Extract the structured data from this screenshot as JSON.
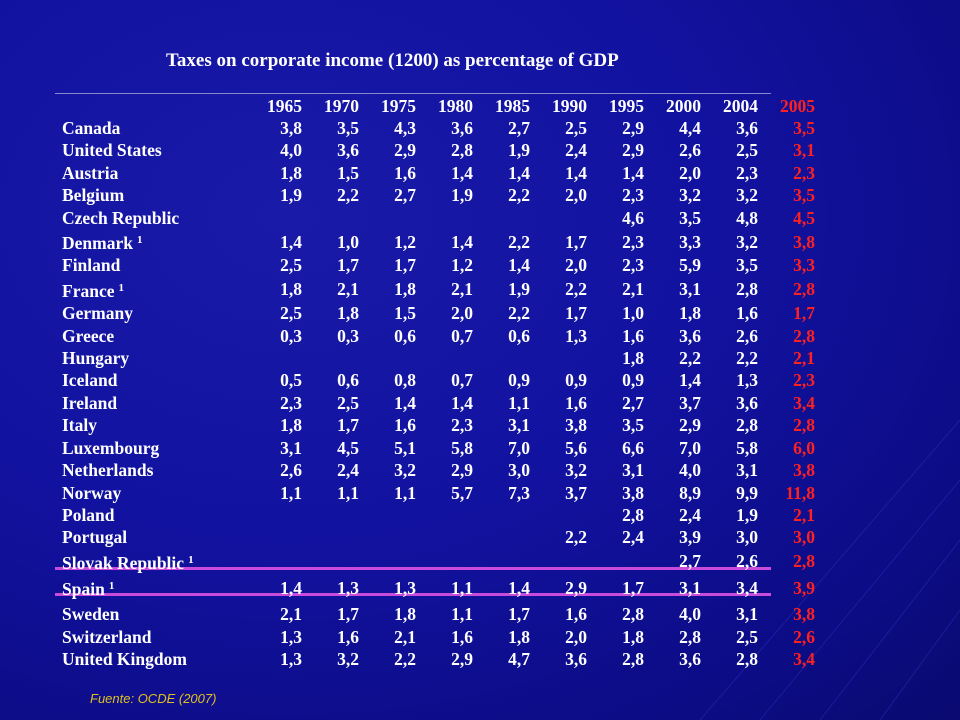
{
  "title": "Taxes on corporate income (1200) as percentage of GDP",
  "years": [
    "1965",
    "1970",
    "1975",
    "1980",
    "1985",
    "1990",
    "1995",
    "2000",
    "2004",
    "2005"
  ],
  "rows": [
    {
      "country": "Canada",
      "note": "",
      "values": [
        "3,8",
        "3,5",
        "4,3",
        "3,6",
        "2,7",
        "2,5",
        "2,9",
        "4,4",
        "3,6",
        "3,5"
      ]
    },
    {
      "country": "United States",
      "note": "",
      "values": [
        "4,0",
        "3,6",
        "2,9",
        "2,8",
        "1,9",
        "2,4",
        "2,9",
        "2,6",
        "2,5",
        "3,1"
      ]
    },
    {
      "country": "Austria",
      "note": "",
      "values": [
        "1,8",
        "1,5",
        "1,6",
        "1,4",
        "1,4",
        "1,4",
        "1,4",
        "2,0",
        "2,3",
        "2,3"
      ]
    },
    {
      "country": "Belgium",
      "note": "",
      "values": [
        "1,9",
        "2,2",
        "2,7",
        "1,9",
        "2,2",
        "2,0",
        "2,3",
        "3,2",
        "3,2",
        "3,5"
      ]
    },
    {
      "country": "Czech Republic",
      "note": "",
      "values": [
        "",
        "",
        "",
        "",
        "",
        "",
        "4,6",
        "3,5",
        "4,8",
        "4,5"
      ]
    },
    {
      "country": "Denmark",
      "note": "1",
      "values": [
        "1,4",
        "1,0",
        "1,2",
        "1,4",
        "2,2",
        "1,7",
        "2,3",
        "3,3",
        "3,2",
        "3,8"
      ]
    },
    {
      "country": "Finland",
      "note": "",
      "values": [
        "2,5",
        "1,7",
        "1,7",
        "1,2",
        "1,4",
        "2,0",
        "2,3",
        "5,9",
        "3,5",
        "3,3"
      ]
    },
    {
      "country": "France",
      "note": "1",
      "values": [
        "1,8",
        "2,1",
        "1,8",
        "2,1",
        "1,9",
        "2,2",
        "2,1",
        "3,1",
        "2,8",
        "2,8"
      ]
    },
    {
      "country": "Germany",
      "note": "",
      "values": [
        "2,5",
        "1,8",
        "1,5",
        "2,0",
        "2,2",
        "1,7",
        "1,0",
        "1,8",
        "1,6",
        "1,7"
      ]
    },
    {
      "country": "Greece",
      "note": "",
      "values": [
        "0,3",
        "0,3",
        "0,6",
        "0,7",
        "0,6",
        "1,3",
        "1,6",
        "3,6",
        "2,6",
        "2,8"
      ]
    },
    {
      "country": "Hungary",
      "note": "",
      "values": [
        "",
        "",
        "",
        "",
        "",
        "",
        "1,8",
        "2,2",
        "2,2",
        "2,1"
      ]
    },
    {
      "country": "Iceland",
      "note": "",
      "values": [
        "0,5",
        "0,6",
        "0,8",
        "0,7",
        "0,9",
        "0,9",
        "0,9",
        "1,4",
        "1,3",
        "2,3"
      ]
    },
    {
      "country": "Ireland",
      "note": "",
      "values": [
        "2,3",
        "2,5",
        "1,4",
        "1,4",
        "1,1",
        "1,6",
        "2,7",
        "3,7",
        "3,6",
        "3,4"
      ]
    },
    {
      "country": "Italy",
      "note": "",
      "values": [
        "1,8",
        "1,7",
        "1,6",
        "2,3",
        "3,1",
        "3,8",
        "3,5",
        "2,9",
        "2,8",
        "2,8"
      ]
    },
    {
      "country": "Luxembourg",
      "note": "",
      "values": [
        "3,1",
        "4,5",
        "5,1",
        "5,8",
        "7,0",
        "5,6",
        "6,6",
        "7,0",
        "5,8",
        "6,0"
      ]
    },
    {
      "country": "Netherlands",
      "note": "",
      "values": [
        "2,6",
        "2,4",
        "3,2",
        "2,9",
        "3,0",
        "3,2",
        "3,1",
        "4,0",
        "3,1",
        "3,8"
      ]
    },
    {
      "country": "Norway",
      "note": "",
      "values": [
        "1,1",
        "1,1",
        "1,1",
        "5,7",
        "7,3",
        "3,7",
        "3,8",
        "8,9",
        "9,9",
        "11,8"
      ]
    },
    {
      "country": "Poland",
      "note": "",
      "values": [
        "",
        "",
        "",
        "",
        "",
        "",
        "2,8",
        "2,4",
        "1,9",
        "2,1"
      ]
    },
    {
      "country": "Portugal",
      "note": "",
      "values": [
        "",
        "",
        "",
        "",
        "",
        "2,2",
        "2,4",
        "3,9",
        "3,0",
        "3,0"
      ]
    },
    {
      "country": "Slovak Republic",
      "note": "1",
      "values": [
        "",
        "",
        "",
        "",
        "",
        "",
        "",
        "2,7",
        "2,6",
        "2,8"
      ]
    },
    {
      "country": "Spain",
      "note": "1",
      "values": [
        "1,4",
        "1,3",
        "1,3",
        "1,1",
        "1,4",
        "2,9",
        "1,7",
        "3,1",
        "3,4",
        "3,9"
      ]
    },
    {
      "country": "Sweden",
      "note": "",
      "values": [
        "2,1",
        "1,7",
        "1,8",
        "1,1",
        "1,7",
        "1,6",
        "2,8",
        "4,0",
        "3,1",
        "3,8"
      ]
    },
    {
      "country": "Switzerland",
      "note": "",
      "values": [
        "1,3",
        "1,6",
        "2,1",
        "1,6",
        "1,8",
        "2,0",
        "1,8",
        "2,8",
        "2,5",
        "2,6"
      ]
    },
    {
      "country": "United Kingdom",
      "note": "",
      "values": [
        "1,3",
        "3,2",
        "2,2",
        "2,9",
        "4,7",
        "3,6",
        "2,8",
        "3,6",
        "2,8",
        "3,4"
      ]
    }
  ],
  "highlight_country": "Spain",
  "source": "Fuente: OCDE (2007)",
  "colors": {
    "background": "#1212a0",
    "text": "#ffffff",
    "last_column": "#ff2020",
    "highlight_rule": "#c84bdc",
    "source_text": "#e0c020"
  }
}
